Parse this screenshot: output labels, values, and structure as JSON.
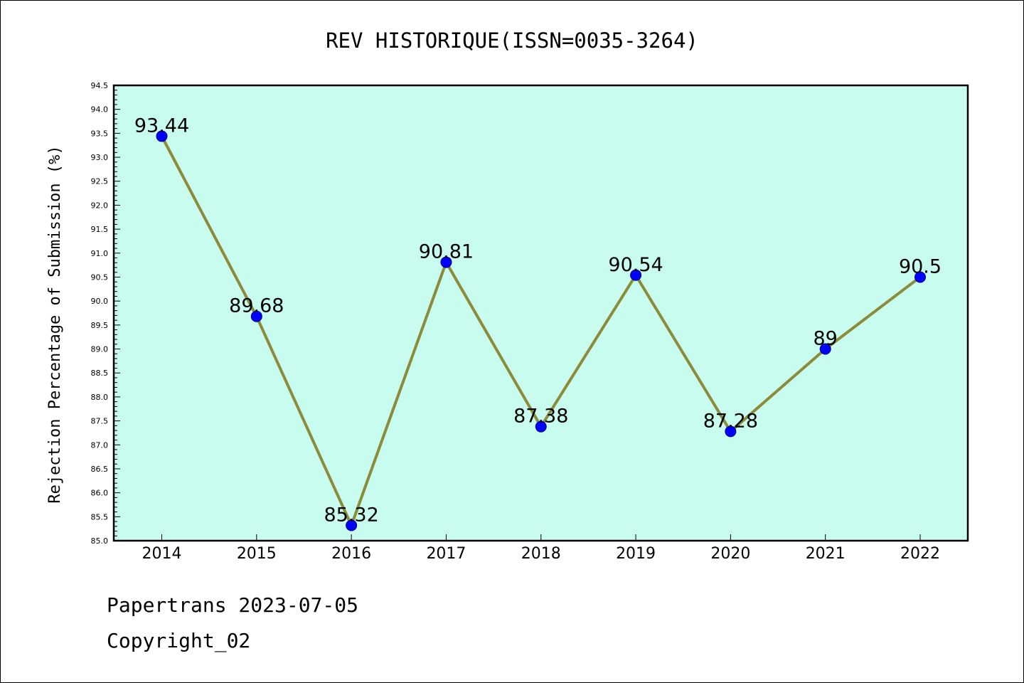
{
  "chart_data": {
    "type": "line",
    "title": "REV HISTORIQUE(ISSN=0035-3264)",
    "xlabel": "",
    "ylabel": "Rejection Percentage of Submission (%)",
    "categories": [
      "2014",
      "2015",
      "2016",
      "2017",
      "2018",
      "2019",
      "2020",
      "2021",
      "2022"
    ],
    "series": [
      {
        "values": [
          93.44,
          89.68,
          85.32,
          90.81,
          87.38,
          90.54,
          87.28,
          89,
          90.5
        ],
        "data_labels": [
          "93.44",
          "89.68",
          "85.32",
          "90.81",
          "87.38",
          "90.54",
          "87.28",
          "89",
          "90.5"
        ]
      }
    ],
    "ylim": [
      85.0,
      94.5
    ],
    "yticks": [
      "85.0",
      "85.5",
      "86.0",
      "86.5",
      "87.0",
      "87.5",
      "88.0",
      "88.5",
      "89.0",
      "89.5",
      "90.0",
      "90.5",
      "91.0",
      "91.5",
      "92.0",
      "92.5",
      "93.0",
      "93.5",
      "94.0",
      "94.5"
    ],
    "grid": false,
    "colors": {
      "plot_background": "#c8fcee",
      "line": "#8b8b3a",
      "marker": "#0000ff",
      "marker_edge": "#000080"
    }
  },
  "footer": {
    "line1": "Papertrans 2023-07-05",
    "line2": "Copyright_02"
  }
}
